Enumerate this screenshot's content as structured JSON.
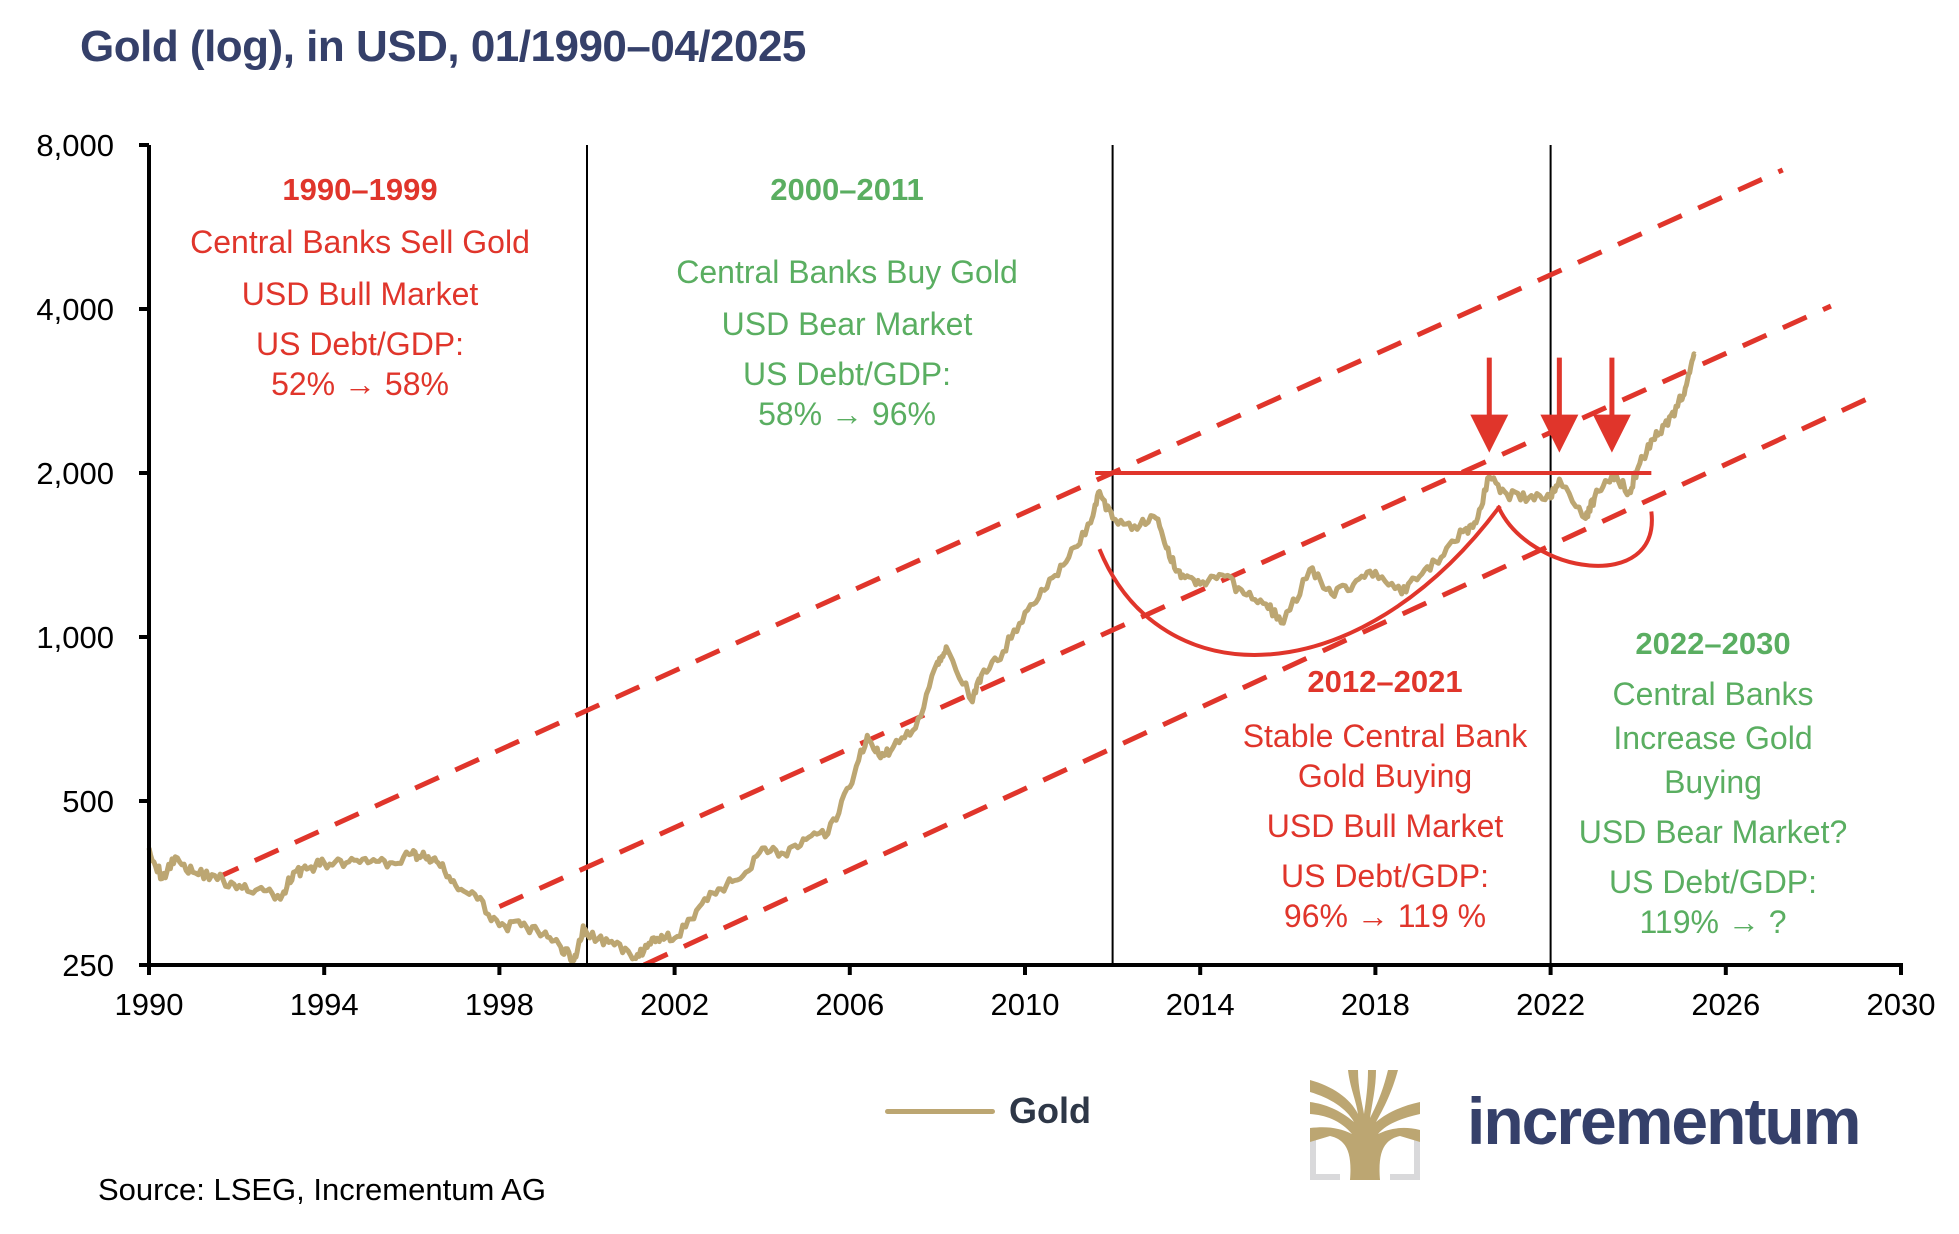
{
  "title": "Gold (log), in USD, 01/1990–04/2025",
  "chart_data": {
    "type": "line",
    "title": "Gold (log), in USD, 01/1990–04/2025",
    "xlabel": "",
    "ylabel": "",
    "yscale": "log",
    "xlim": [
      1990,
      2030
    ],
    "ylim": [
      250,
      8000
    ],
    "x_ticks": [
      "1990",
      "1994",
      "1998",
      "2002",
      "2006",
      "2010",
      "2014",
      "2018",
      "2022",
      "2026",
      "2030"
    ],
    "y_ticks": [
      "8,000",
      "4,000",
      "2,000",
      "1,000",
      "500",
      "250"
    ],
    "y_tick_values": [
      8000,
      4000,
      2000,
      1000,
      500,
      250
    ],
    "grid": false,
    "legend": {
      "position": "bottom-center",
      "entries": [
        "Gold"
      ]
    },
    "series": [
      {
        "name": "Gold",
        "color": "#bca672",
        "x": [
          1990.0,
          1990.3,
          1990.6,
          1991.0,
          1991.5,
          1992.0,
          1992.5,
          1993.0,
          1993.3,
          1993.6,
          1994.0,
          1994.5,
          1995.0,
          1995.5,
          1996.0,
          1996.3,
          1996.6,
          1997.0,
          1997.5,
          1998.0,
          1998.5,
          1999.0,
          1999.4,
          1999.7,
          1999.9,
          2000.0,
          2000.5,
          2001.0,
          2001.3,
          2001.6,
          2002.0,
          2002.5,
          2003.0,
          2003.5,
          2004.0,
          2004.5,
          2005.0,
          2005.5,
          2006.0,
          2006.4,
          2006.7,
          2007.0,
          2007.5,
          2008.0,
          2008.2,
          2008.8,
          2009.0,
          2009.5,
          2010.0,
          2010.5,
          2011.0,
          2011.5,
          2011.7,
          2012.0,
          2012.5,
          2013.0,
          2013.3,
          2013.6,
          2014.0,
          2014.5,
          2015.0,
          2015.5,
          2015.9,
          2016.5,
          2017.0,
          2017.5,
          2018.0,
          2018.6,
          2019.0,
          2019.5,
          2020.0,
          2020.3,
          2020.6,
          2021.0,
          2021.5,
          2022.0,
          2022.2,
          2022.8,
          2023.0,
          2023.4,
          2023.8,
          2024.0,
          2024.3,
          2024.6,
          2024.9,
          2025.1,
          2025.3
        ],
        "y": [
          410,
          360,
          395,
          370,
          365,
          345,
          345,
          330,
          370,
          375,
          385,
          385,
          385,
          385,
          400,
          395,
          385,
          350,
          330,
          295,
          295,
          285,
          270,
          255,
          290,
          285,
          275,
          260,
          265,
          280,
          280,
          315,
          345,
          360,
          410,
          400,
          425,
          435,
          530,
          660,
          600,
          630,
          680,
          900,
          960,
          760,
          850,
          940,
          1110,
          1230,
          1400,
          1620,
          1850,
          1650,
          1600,
          1650,
          1400,
          1300,
          1250,
          1300,
          1200,
          1150,
          1060,
          1330,
          1200,
          1250,
          1320,
          1200,
          1290,
          1400,
          1560,
          1620,
          1970,
          1830,
          1800,
          1800,
          1950,
          1650,
          1800,
          1980,
          1850,
          2050,
          2300,
          2450,
          2650,
          2900,
          3300
        ]
      }
    ],
    "overlays": {
      "channel_lines_dashed": [
        {
          "name": "upper channel",
          "from": [
            1991.5,
            360
          ],
          "to": [
            2027.3,
            7200
          ]
        },
        {
          "name": "middle channel",
          "from": [
            1998.0,
            320
          ],
          "to": [
            2028.4,
            4050
          ]
        },
        {
          "name": "lower channel",
          "from": [
            2001.3,
            250
          ],
          "to": [
            2029.5,
            2800
          ]
        }
      ],
      "resistance_line": {
        "from": [
          2011.6,
          2000
        ],
        "to": [
          2024.3,
          2000
        ]
      },
      "arrows_down_at": [
        2020.6,
        2022.2,
        2023.4
      ]
    },
    "annotations": [
      {
        "period": "1990–1999",
        "lines": [
          "Central Banks Sell Gold",
          "USD Bull Market",
          "US Debt/GDP:",
          "52% → 58%"
        ],
        "color": "#e0352b"
      },
      {
        "period": "2000–2011",
        "lines": [
          "Central Banks Buy Gold",
          "USD Bear Market",
          "US Debt/GDP:",
          "58% → 96%"
        ],
        "color": "#5aae61"
      },
      {
        "period": "2012–2021",
        "lines": [
          "Stable Central Bank",
          "Gold Buying",
          "USD Bull Market",
          "US Debt/GDP:",
          "96% → 119 %"
        ],
        "color": "#e0352b"
      },
      {
        "period": "2022–2030",
        "lines": [
          "Central Banks",
          "Increase  Gold",
          "Buying",
          "USD Bear Market?",
          "US Debt/GDP:",
          "119% → ?"
        ],
        "color": "#5aae61"
      }
    ],
    "era_dividers": [
      2000,
      2012,
      2022
    ]
  },
  "legend": {
    "label": "Gold",
    "color": "#bca672"
  },
  "source": "Source: LSEG, Incrementum AG",
  "brand": {
    "name": "incrementum",
    "logo_icon": "tree-logo-icon"
  },
  "colors": {
    "title": "#35406a",
    "red": "#e0352b",
    "green": "#5aae61",
    "gold": "#bca672"
  }
}
